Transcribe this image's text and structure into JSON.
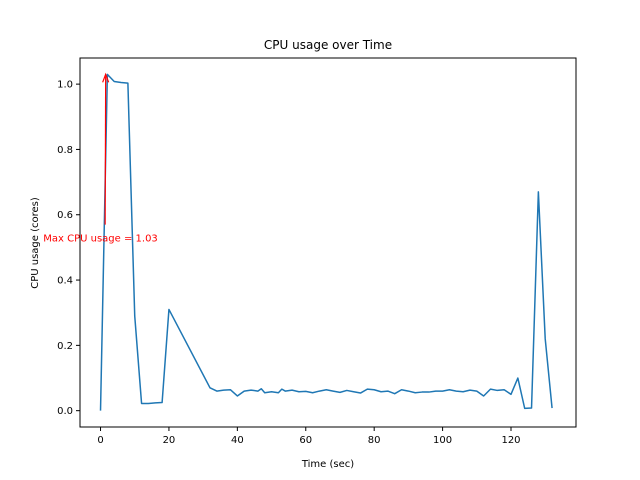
{
  "chart_data": {
    "type": "line",
    "title": "CPU usage over Time",
    "xlabel": "Time (sec)",
    "ylabel": "CPU usage (cores)",
    "xlim": [
      -6,
      139
    ],
    "ylim": [
      -0.05,
      1.08
    ],
    "xticks": [
      0,
      20,
      40,
      60,
      80,
      100,
      120
    ],
    "xtick_labels": [
      "0",
      "20",
      "40",
      "60",
      "80",
      "100",
      "120"
    ],
    "yticks": [
      0.0,
      0.2,
      0.4,
      0.6,
      0.8,
      1.0
    ],
    "ytick_labels": [
      "0.0",
      "0.2",
      "0.4",
      "0.6",
      "0.8",
      "1.0"
    ],
    "grid": false,
    "line_color": "#1f77b4",
    "series": [
      {
        "x": [
          0,
          2,
          4,
          6,
          8,
          10,
          12,
          14,
          16,
          18,
          20,
          32,
          34,
          36,
          38,
          40,
          42,
          44,
          46,
          47,
          48,
          50,
          52,
          53,
          54,
          56,
          58,
          60,
          62,
          64,
          66,
          68,
          70,
          72,
          74,
          76,
          78,
          80,
          82,
          84,
          86,
          88,
          90,
          92,
          94,
          96,
          98,
          100,
          102,
          104,
          106,
          108,
          110,
          112,
          114,
          116,
          118,
          120,
          122,
          124,
          126,
          128,
          130,
          132
        ],
        "y": [
          0.0,
          1.03,
          1.008,
          1.005,
          1.003,
          0.29,
          0.022,
          0.022,
          0.024,
          0.025,
          0.31,
          0.07,
          0.06,
          0.063,
          0.064,
          0.045,
          0.06,
          0.063,
          0.06,
          0.067,
          0.055,
          0.058,
          0.055,
          0.066,
          0.06,
          0.063,
          0.058,
          0.059,
          0.055,
          0.06,
          0.064,
          0.06,
          0.056,
          0.062,
          0.058,
          0.054,
          0.066,
          0.064,
          0.058,
          0.06,
          0.052,
          0.064,
          0.06,
          0.055,
          0.057,
          0.057,
          0.06,
          0.06,
          0.064,
          0.06,
          0.058,
          0.063,
          0.06,
          0.045,
          0.066,
          0.062,
          0.064,
          0.05,
          0.1,
          0.007,
          0.008,
          0.67,
          0.22,
          0.008
        ]
      }
    ],
    "annotation": {
      "text": "Max CPU usage = 1.03",
      "point": [
        1.5,
        1.03
      ],
      "text_pos": [
        0,
        0.53
      ],
      "color": "#ff0000"
    }
  }
}
